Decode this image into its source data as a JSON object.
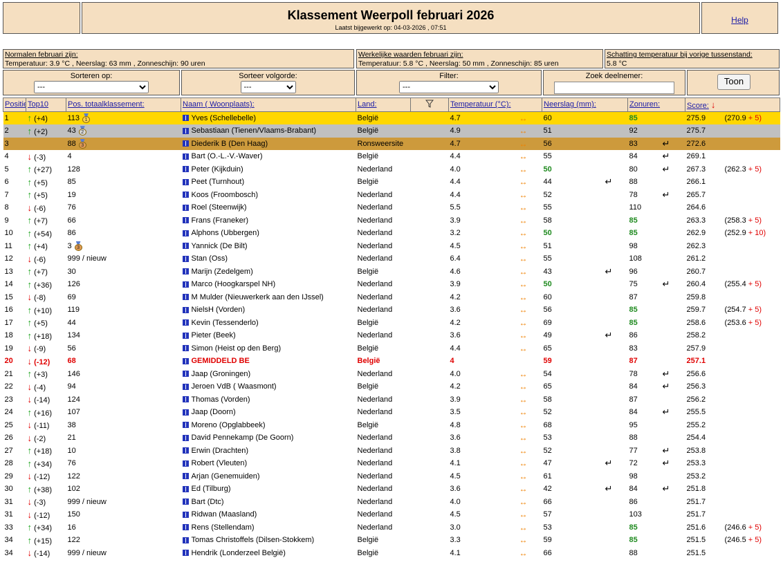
{
  "header": {
    "title": "Klassement Weerpoll februari 2026",
    "updated": "Laatst bijgewerkt op: 04-03-2026 , 07:51",
    "help": "Help"
  },
  "info": {
    "normals_label": "Normalen februari zijn:",
    "normals_text": "Temperatuur: 3.9 °C , Neerslag: 63 mm , Zonneschijn: 90 uren",
    "actual_label": "Werkelijke waarden februari zijn:",
    "actual_text": "Temperatuur: 5.8 °C , Neerslag: 50 mm , Zonneschijn: 85 uren",
    "estimate_label": "Schatting temperatuur bij vorige tussenstand:",
    "estimate_text": "5.8 °C"
  },
  "controls": {
    "sort_label": "Sorteren op:",
    "sort_value": "---",
    "order_label": "Sorteer volgorde:",
    "order_value": "---",
    "filter_label": "Filter:",
    "filter_value": "---",
    "search_label": "Zoek deelnemer:",
    "search_value": "",
    "show_button": "Toon"
  },
  "columns": {
    "position": "Positie:",
    "top10": "Top10",
    "total_pos": "Pos. totaalklassement:",
    "name": "Naam ( Woonplaats):",
    "country": "Land:",
    "temperature": "Temperatuur (°C):",
    "precip": "Neerslag (mm):",
    "sun": "Zonuren:",
    "score": "Score:"
  },
  "icons": {
    "flag": "name-flag-icon",
    "filter": "funnel-filter-icon",
    "sort": "arrow-down-sort-icon",
    "up": "arrow-up-icon",
    "down": "arrow-down-icon",
    "lr": "left-right-arrow-icon",
    "ret": "return-arrow-icon",
    "medal": "medal-icon"
  },
  "colors": {
    "panel": "#f5dfc1",
    "gold": "#ffd700",
    "silver": "#c0c0c0",
    "bronze": "#cd9a3c",
    "up": "#1aa31a",
    "down": "#e00000",
    "green_value": "#1f8a1f",
    "lr_arrow": "#f08000"
  },
  "rows": [
    {
      "pos": "1",
      "dir": "up",
      "change": "(+4)",
      "total": "113",
      "medal": "1",
      "name": "Yves (Schellebelle)",
      "country": "België",
      "temp": "4.7",
      "temp_lr": true,
      "precip": "60",
      "precip_green": false,
      "precip_ret": false,
      "sun": "85",
      "sun_green": true,
      "sun_ret": false,
      "score": "275.9",
      "bonus_base": "(270.9",
      "bonus_plus": "+ 5)",
      "style": "gold"
    },
    {
      "pos": "2",
      "dir": "up",
      "change": "(+2)",
      "total": "43",
      "medal": "2",
      "name": "Sebastiaan (Tienen/Vlaams-Brabant)",
      "country": "België",
      "temp": "4.9",
      "temp_lr": true,
      "precip": "51",
      "precip_green": false,
      "precip_ret": false,
      "sun": "92",
      "sun_green": false,
      "sun_ret": false,
      "score": "275.7",
      "bonus_base": "",
      "bonus_plus": "",
      "style": "silver"
    },
    {
      "pos": "3",
      "dir": "",
      "change": "",
      "total": "88",
      "medal": "3",
      "name": "Diederik B (Den Haag)",
      "country": "Ronsweersite",
      "temp": "4.7",
      "temp_lr": true,
      "precip": "56",
      "precip_green": false,
      "precip_ret": false,
      "sun": "83",
      "sun_green": false,
      "sun_ret": true,
      "score": "272.6",
      "bonus_base": "",
      "bonus_plus": "",
      "style": "bronze"
    },
    {
      "pos": "4",
      "dir": "down",
      "change": "(-3)",
      "total": "4",
      "medal": "",
      "name": "Bart (O.-L.-V.-Waver)",
      "country": "België",
      "temp": "4.4",
      "temp_lr": true,
      "precip": "55",
      "precip_green": false,
      "precip_ret": false,
      "sun": "84",
      "sun_green": false,
      "sun_ret": true,
      "score": "269.1",
      "bonus_base": "",
      "bonus_plus": "",
      "style": ""
    },
    {
      "pos": "5",
      "dir": "up",
      "change": "(+27)",
      "total": "128",
      "medal": "",
      "name": "Peter (Kijkduin)",
      "country": "Nederland",
      "temp": "4.0",
      "temp_lr": true,
      "precip": "50",
      "precip_green": true,
      "precip_ret": false,
      "sun": "80",
      "sun_green": false,
      "sun_ret": true,
      "score": "267.3",
      "bonus_base": "(262.3",
      "bonus_plus": "+ 5)",
      "style": ""
    },
    {
      "pos": "6",
      "dir": "up",
      "change": "(+5)",
      "total": "85",
      "medal": "",
      "name": "Peet (Turnhout)",
      "country": "België",
      "temp": "4.4",
      "temp_lr": true,
      "precip": "44",
      "precip_green": false,
      "precip_ret": true,
      "sun": "88",
      "sun_green": false,
      "sun_ret": false,
      "score": "266.1",
      "bonus_base": "",
      "bonus_plus": "",
      "style": ""
    },
    {
      "pos": "7",
      "dir": "up",
      "change": "(+5)",
      "total": "19",
      "medal": "",
      "name": "Koos (Froombosch)",
      "country": "Nederland",
      "temp": "4.4",
      "temp_lr": true,
      "precip": "52",
      "precip_green": false,
      "precip_ret": false,
      "sun": "78",
      "sun_green": false,
      "sun_ret": true,
      "score": "265.7",
      "bonus_base": "",
      "bonus_plus": "",
      "style": ""
    },
    {
      "pos": "8",
      "dir": "down",
      "change": "(-6)",
      "total": "76",
      "medal": "",
      "name": "Roel (Steenwijk)",
      "country": "Nederland",
      "temp": "5.5",
      "temp_lr": true,
      "precip": "55",
      "precip_green": false,
      "precip_ret": false,
      "sun": "110",
      "sun_green": false,
      "sun_ret": false,
      "score": "264.6",
      "bonus_base": "",
      "bonus_plus": "",
      "style": ""
    },
    {
      "pos": "9",
      "dir": "up",
      "change": "(+7)",
      "total": "66",
      "medal": "",
      "name": "Frans (Franeker)",
      "country": "Nederland",
      "temp": "3.9",
      "temp_lr": true,
      "precip": "58",
      "precip_green": false,
      "precip_ret": false,
      "sun": "85",
      "sun_green": true,
      "sun_ret": false,
      "score": "263.3",
      "bonus_base": "(258.3",
      "bonus_plus": "+ 5)",
      "style": ""
    },
    {
      "pos": "10",
      "dir": "up",
      "change": "(+54)",
      "total": "86",
      "medal": "",
      "name": "Alphons (Ubbergen)",
      "country": "Nederland",
      "temp": "3.2",
      "temp_lr": true,
      "precip": "50",
      "precip_green": true,
      "precip_ret": false,
      "sun": "85",
      "sun_green": true,
      "sun_ret": false,
      "score": "262.9",
      "bonus_base": "(252.9",
      "bonus_plus": "+ 10)",
      "style": ""
    },
    {
      "pos": "11",
      "dir": "up",
      "change": "(+4)",
      "total": "3",
      "medal": "3",
      "name": "Yannick (De Bilt)",
      "country": "Nederland",
      "temp": "4.5",
      "temp_lr": true,
      "precip": "51",
      "precip_green": false,
      "precip_ret": false,
      "sun": "98",
      "sun_green": false,
      "sun_ret": false,
      "score": "262.3",
      "bonus_base": "",
      "bonus_plus": "",
      "style": ""
    },
    {
      "pos": "12",
      "dir": "down",
      "change": "(-6)",
      "total": "999 / nieuw",
      "medal": "",
      "name": "Stan (Oss)",
      "country": "Nederland",
      "temp": "6.4",
      "temp_lr": true,
      "precip": "55",
      "precip_green": false,
      "precip_ret": false,
      "sun": "108",
      "sun_green": false,
      "sun_ret": false,
      "score": "261.2",
      "bonus_base": "",
      "bonus_plus": "",
      "style": ""
    },
    {
      "pos": "13",
      "dir": "up",
      "change": "(+7)",
      "total": "30",
      "medal": "",
      "name": "Marijn (Zedelgem)",
      "country": "België",
      "temp": "4.6",
      "temp_lr": true,
      "precip": "43",
      "precip_green": false,
      "precip_ret": true,
      "sun": "96",
      "sun_green": false,
      "sun_ret": false,
      "score": "260.7",
      "bonus_base": "",
      "bonus_plus": "",
      "style": ""
    },
    {
      "pos": "14",
      "dir": "up",
      "change": "(+36)",
      "total": "126",
      "medal": "",
      "name": "Marco (Hoogkarspel NH)",
      "country": "Nederland",
      "temp": "3.9",
      "temp_lr": true,
      "precip": "50",
      "precip_green": true,
      "precip_ret": false,
      "sun": "75",
      "sun_green": false,
      "sun_ret": true,
      "score": "260.4",
      "bonus_base": "(255.4",
      "bonus_plus": "+ 5)",
      "style": ""
    },
    {
      "pos": "15",
      "dir": "down",
      "change": "(-8)",
      "total": "69",
      "medal": "",
      "name": "M Mulder (Nieuwerkerk aan den IJssel)",
      "country": "Nederland",
      "temp": "4.2",
      "temp_lr": true,
      "precip": "60",
      "precip_green": false,
      "precip_ret": false,
      "sun": "87",
      "sun_green": false,
      "sun_ret": false,
      "score": "259.8",
      "bonus_base": "",
      "bonus_plus": "",
      "style": ""
    },
    {
      "pos": "16",
      "dir": "up",
      "change": "(+10)",
      "total": "119",
      "medal": "",
      "name": "NielsH (Vorden)",
      "country": "Nederland",
      "temp": "3.6",
      "temp_lr": true,
      "precip": "56",
      "precip_green": false,
      "precip_ret": false,
      "sun": "85",
      "sun_green": true,
      "sun_ret": false,
      "score": "259.7",
      "bonus_base": "(254.7",
      "bonus_plus": "+ 5)",
      "style": ""
    },
    {
      "pos": "17",
      "dir": "up",
      "change": "(+5)",
      "total": "44",
      "medal": "",
      "name": "Kevin (Tessenderlo)",
      "country": "België",
      "temp": "4.2",
      "temp_lr": true,
      "precip": "69",
      "precip_green": false,
      "precip_ret": false,
      "sun": "85",
      "sun_green": true,
      "sun_ret": false,
      "score": "258.6",
      "bonus_base": "(253.6",
      "bonus_plus": "+ 5)",
      "style": ""
    },
    {
      "pos": "18",
      "dir": "up",
      "change": "(+18)",
      "total": "134",
      "medal": "",
      "name": "Pieter (Beek)",
      "country": "Nederland",
      "temp": "3.6",
      "temp_lr": true,
      "precip": "49",
      "precip_green": false,
      "precip_ret": true,
      "sun": "86",
      "sun_green": false,
      "sun_ret": false,
      "score": "258.2",
      "bonus_base": "",
      "bonus_plus": "",
      "style": ""
    },
    {
      "pos": "19",
      "dir": "down",
      "change": "(-9)",
      "total": "56",
      "medal": "",
      "name": "Simon (Heist op den Berg)",
      "country": "België",
      "temp": "4.4",
      "temp_lr": true,
      "precip": "65",
      "precip_green": false,
      "precip_ret": false,
      "sun": "83",
      "sun_green": false,
      "sun_ret": false,
      "score": "257.9",
      "bonus_base": "",
      "bonus_plus": "",
      "style": ""
    },
    {
      "pos": "20",
      "dir": "down",
      "change": "(-12)",
      "total": "68",
      "medal": "",
      "name": "GEMIDDELD BE",
      "country": "België",
      "temp": "4",
      "temp_lr": false,
      "precip": "59",
      "precip_green": false,
      "precip_ret": false,
      "sun": "87",
      "sun_green": false,
      "sun_ret": false,
      "score": "257.1",
      "bonus_base": "",
      "bonus_plus": "",
      "style": "avg"
    },
    {
      "pos": "21",
      "dir": "up",
      "change": "(+3)",
      "total": "146",
      "medal": "",
      "name": "Jaap (Groningen)",
      "country": "Nederland",
      "temp": "4.0",
      "temp_lr": true,
      "precip": "54",
      "precip_green": false,
      "precip_ret": false,
      "sun": "78",
      "sun_green": false,
      "sun_ret": true,
      "score": "256.6",
      "bonus_base": "",
      "bonus_plus": "",
      "style": ""
    },
    {
      "pos": "22",
      "dir": "down",
      "change": "(-4)",
      "total": "94",
      "medal": "",
      "name": "Jeroen VdB ( Waasmont)",
      "country": "België",
      "temp": "4.2",
      "temp_lr": true,
      "precip": "65",
      "precip_green": false,
      "precip_ret": false,
      "sun": "84",
      "sun_green": false,
      "sun_ret": true,
      "score": "256.3",
      "bonus_base": "",
      "bonus_plus": "",
      "style": ""
    },
    {
      "pos": "23",
      "dir": "down",
      "change": "(-14)",
      "total": "124",
      "medal": "",
      "name": "Thomas (Vorden)",
      "country": "Nederland",
      "temp": "3.9",
      "temp_lr": true,
      "precip": "58",
      "precip_green": false,
      "precip_ret": false,
      "sun": "87",
      "sun_green": false,
      "sun_ret": false,
      "score": "256.2",
      "bonus_base": "",
      "bonus_plus": "",
      "style": ""
    },
    {
      "pos": "24",
      "dir": "up",
      "change": "(+16)",
      "total": "107",
      "medal": "",
      "name": "Jaap (Doorn)",
      "country": "Nederland",
      "temp": "3.5",
      "temp_lr": true,
      "precip": "52",
      "precip_green": false,
      "precip_ret": false,
      "sun": "84",
      "sun_green": false,
      "sun_ret": true,
      "score": "255.5",
      "bonus_base": "",
      "bonus_plus": "",
      "style": ""
    },
    {
      "pos": "25",
      "dir": "down",
      "change": "(-11)",
      "total": "38",
      "medal": "",
      "name": "Moreno (Opglabbeek)",
      "country": "België",
      "temp": "4.8",
      "temp_lr": true,
      "precip": "68",
      "precip_green": false,
      "precip_ret": false,
      "sun": "95",
      "sun_green": false,
      "sun_ret": false,
      "score": "255.2",
      "bonus_base": "",
      "bonus_plus": "",
      "style": ""
    },
    {
      "pos": "26",
      "dir": "down",
      "change": "(-2)",
      "total": "21",
      "medal": "",
      "name": "David Pennekamp (De Goorn)",
      "country": "Nederland",
      "temp": "3.6",
      "temp_lr": true,
      "precip": "53",
      "precip_green": false,
      "precip_ret": false,
      "sun": "88",
      "sun_green": false,
      "sun_ret": false,
      "score": "254.4",
      "bonus_base": "",
      "bonus_plus": "",
      "style": ""
    },
    {
      "pos": "27",
      "dir": "up",
      "change": "(+18)",
      "total": "10",
      "medal": "",
      "name": "Erwin (Drachten)",
      "country": "Nederland",
      "temp": "3.8",
      "temp_lr": true,
      "precip": "52",
      "precip_green": false,
      "precip_ret": false,
      "sun": "77",
      "sun_green": false,
      "sun_ret": true,
      "score": "253.8",
      "bonus_base": "",
      "bonus_plus": "",
      "style": ""
    },
    {
      "pos": "28",
      "dir": "up",
      "change": "(+34)",
      "total": "76",
      "medal": "",
      "name": "Robert (Vleuten)",
      "country": "Nederland",
      "temp": "4.1",
      "temp_lr": true,
      "precip": "47",
      "precip_green": false,
      "precip_ret": true,
      "sun": "72",
      "sun_green": false,
      "sun_ret": true,
      "score": "253.3",
      "bonus_base": "",
      "bonus_plus": "",
      "style": ""
    },
    {
      "pos": "29",
      "dir": "down",
      "change": "(-12)",
      "total": "122",
      "medal": "",
      "name": "Arjan (Genemuiden)",
      "country": "Nederland",
      "temp": "4.5",
      "temp_lr": true,
      "precip": "61",
      "precip_green": false,
      "precip_ret": false,
      "sun": "98",
      "sun_green": false,
      "sun_ret": false,
      "score": "253.2",
      "bonus_base": "",
      "bonus_plus": "",
      "style": ""
    },
    {
      "pos": "30",
      "dir": "up",
      "change": "(+38)",
      "total": "102",
      "medal": "",
      "name": "Ed (Tilburg)",
      "country": "Nederland",
      "temp": "3.6",
      "temp_lr": true,
      "precip": "42",
      "precip_green": false,
      "precip_ret": true,
      "sun": "84",
      "sun_green": false,
      "sun_ret": true,
      "score": "251.8",
      "bonus_base": "",
      "bonus_plus": "",
      "style": ""
    },
    {
      "pos": "31",
      "dir": "down",
      "change": "(-3)",
      "total": "999 / nieuw",
      "medal": "",
      "name": "Bart (Dtc)",
      "country": "Nederland",
      "temp": "4.0",
      "temp_lr": true,
      "precip": "66",
      "precip_green": false,
      "precip_ret": false,
      "sun": "86",
      "sun_green": false,
      "sun_ret": false,
      "score": "251.7",
      "bonus_base": "",
      "bonus_plus": "",
      "style": ""
    },
    {
      "pos": "31",
      "dir": "down",
      "change": "(-12)",
      "total": "150",
      "medal": "",
      "name": "Ridwan (Maasland)",
      "country": "Nederland",
      "temp": "4.5",
      "temp_lr": true,
      "precip": "57",
      "precip_green": false,
      "precip_ret": false,
      "sun": "103",
      "sun_green": false,
      "sun_ret": false,
      "score": "251.7",
      "bonus_base": "",
      "bonus_plus": "",
      "style": ""
    },
    {
      "pos": "33",
      "dir": "up",
      "change": "(+34)",
      "total": "16",
      "medal": "",
      "name": "Rens (Stellendam)",
      "country": "Nederland",
      "temp": "3.0",
      "temp_lr": true,
      "precip": "53",
      "precip_green": false,
      "precip_ret": false,
      "sun": "85",
      "sun_green": true,
      "sun_ret": false,
      "score": "251.6",
      "bonus_base": "(246.6",
      "bonus_plus": "+ 5)",
      "style": ""
    },
    {
      "pos": "34",
      "dir": "up",
      "change": "(+15)",
      "total": "122",
      "medal": "",
      "name": "Tomas Christoffels (Dilsen-Stokkem)",
      "country": "België",
      "temp": "3.3",
      "temp_lr": true,
      "precip": "59",
      "precip_green": false,
      "precip_ret": false,
      "sun": "85",
      "sun_green": true,
      "sun_ret": false,
      "score": "251.5",
      "bonus_base": "(246.5",
      "bonus_plus": "+ 5)",
      "style": ""
    },
    {
      "pos": "34",
      "dir": "down",
      "change": "(-14)",
      "total": "999 / nieuw",
      "medal": "",
      "name": "Hendrik (Londerzeel België)",
      "country": "België",
      "temp": "4.1",
      "temp_lr": true,
      "precip": "66",
      "precip_green": false,
      "precip_ret": false,
      "sun": "88",
      "sun_green": false,
      "sun_ret": false,
      "score": "251.5",
      "bonus_base": "",
      "bonus_plus": "",
      "style": ""
    }
  ]
}
